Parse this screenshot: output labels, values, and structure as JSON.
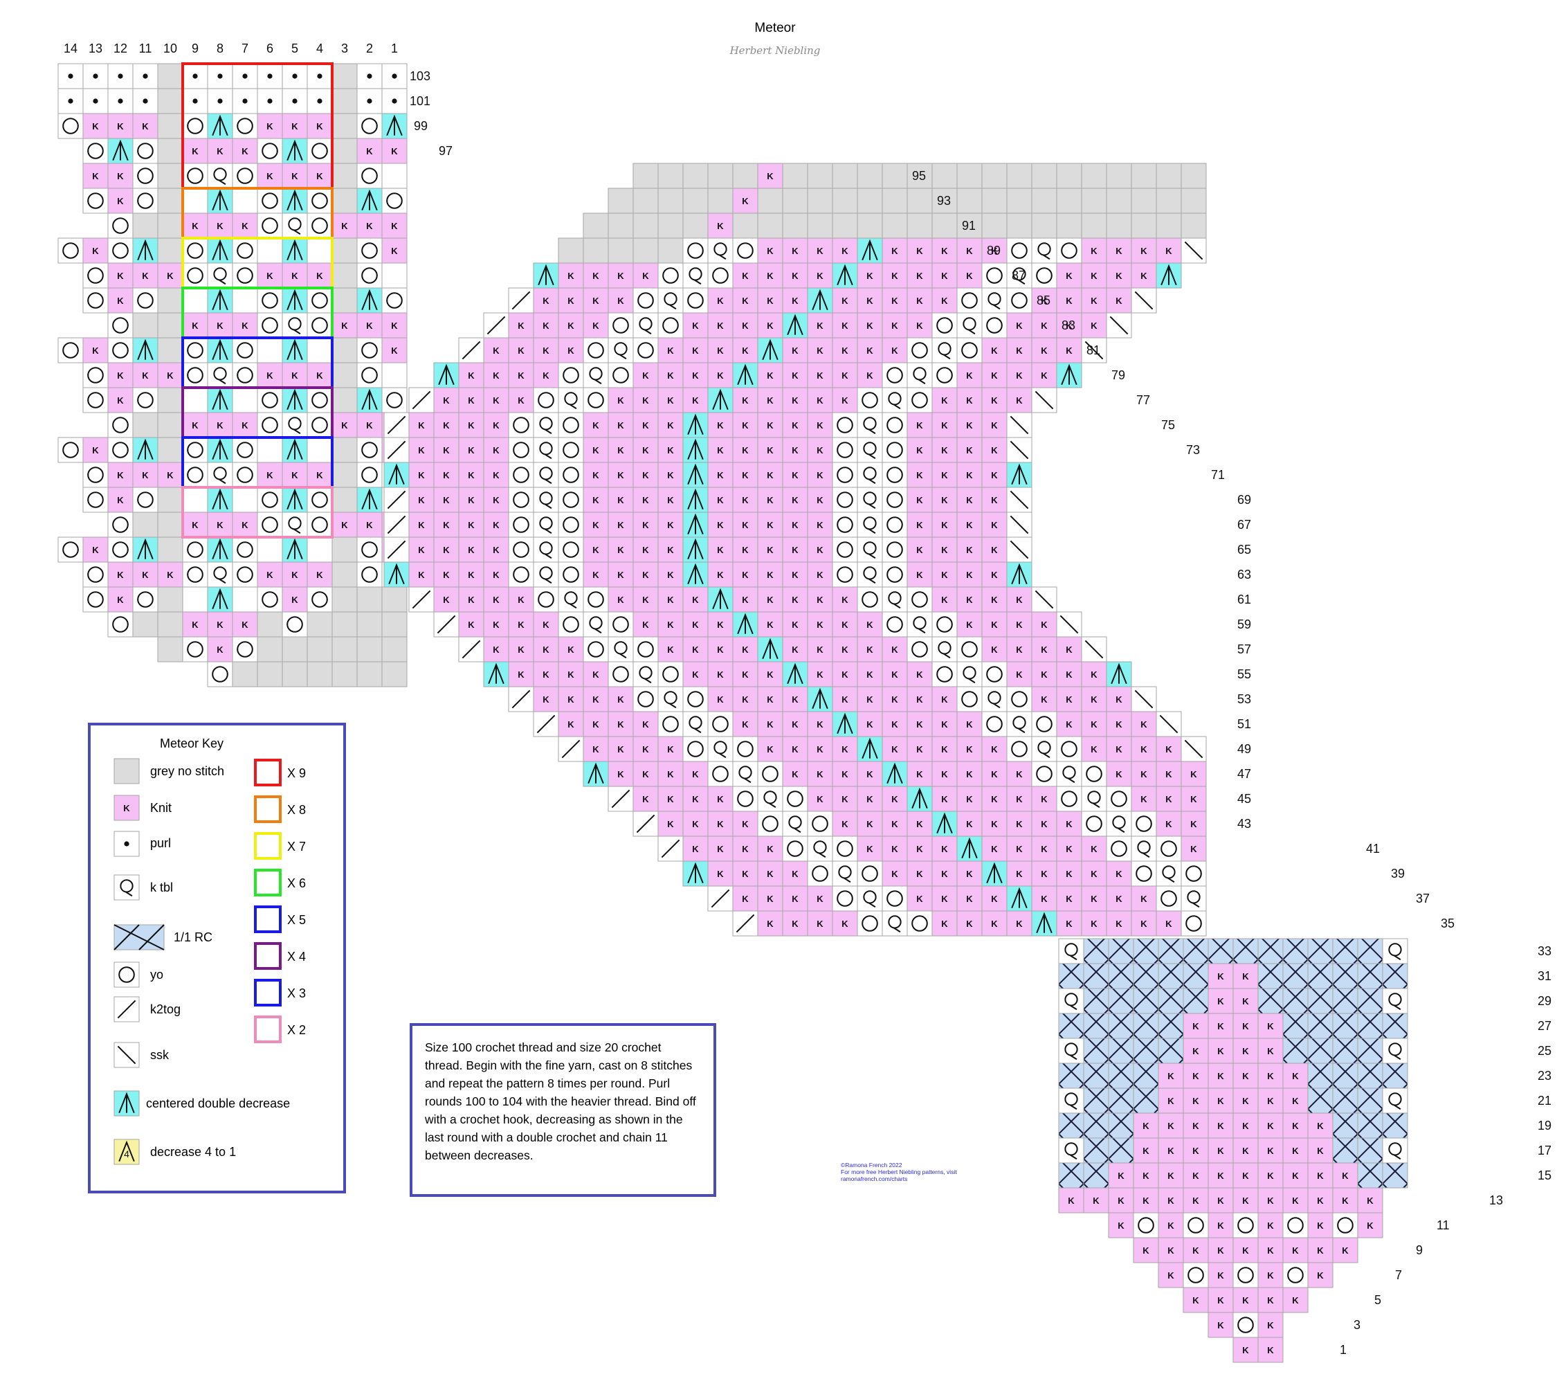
{
  "header": {
    "title": "Meteor",
    "author": "Herbert Niebling"
  },
  "column_numbers": [
    "14",
    "13",
    "12",
    "11",
    "10",
    "9",
    "8",
    "7",
    "6",
    "5",
    "4",
    "3",
    "2",
    "1"
  ],
  "row_labels": {
    "top_block": [
      "103",
      "101",
      "99",
      "97"
    ],
    "upper_diagonal": [
      "95",
      "93",
      "91",
      "89",
      "87",
      "85",
      "83",
      "81",
      "79",
      "77",
      "75",
      "73",
      "71",
      "69",
      "67",
      "65",
      "63",
      "61",
      "59",
      "57",
      "55",
      "53",
      "51",
      "49",
      "47",
      "45",
      "43",
      "41",
      "39",
      "37",
      "35"
    ],
    "lower_block": [
      "33",
      "31",
      "29",
      "27",
      "25",
      "23",
      "21",
      "19",
      "17",
      "15",
      "13",
      "11",
      "9",
      "7",
      "5",
      "3",
      "1"
    ]
  },
  "key": {
    "title": "Meteor Key",
    "symbols": [
      {
        "id": "no-stitch",
        "label": "grey no stitch",
        "color": "#dcdcdc"
      },
      {
        "id": "knit",
        "label": "Knit",
        "glyph": "K",
        "color": "#f6c0f6"
      },
      {
        "id": "purl",
        "label": "purl",
        "glyph": "•"
      },
      {
        "id": "ktbl",
        "label": "k tbl",
        "glyph": "Q"
      },
      {
        "id": "rc",
        "label": "1/1 RC",
        "color": "#c6dcf5"
      },
      {
        "id": "yo",
        "label": "yo"
      },
      {
        "id": "k2tog",
        "label": "k2tog"
      },
      {
        "id": "ssk",
        "label": "ssk"
      },
      {
        "id": "cdd",
        "label": "centered double decrease",
        "color": "#86f2f2"
      },
      {
        "id": "dec4",
        "label": "decrease 4 to 1",
        "glyph": "4",
        "color": "#f8f3a3"
      }
    ],
    "repeats": [
      {
        "label": "X 9",
        "color": "#e81a1a"
      },
      {
        "label": "X 8",
        "color": "#f07d10"
      },
      {
        "label": "X 7",
        "color": "#f0f010"
      },
      {
        "label": "X 6",
        "color": "#2ae62a"
      },
      {
        "label": "X 5",
        "color": "#1a1ae6"
      },
      {
        "label": "X 4",
        "color": "#7a1a8a"
      },
      {
        "label": "X 3",
        "color": "#1a1ae6"
      },
      {
        "label": "X 2",
        "color": "#f08ab8"
      }
    ]
  },
  "notes": "Size 100 crochet thread and size 20 crochet thread. Begin with the fine yarn, cast on 8 stitches and repeat the pattern 8 times per round. Purl rounds 100 to 104 with the heavier thread. Bind off with a crochet hook, decreasing as shown in the last round with a double crochet and chain 11 between decreases.",
  "copyright": {
    "line1": "©Ramona French 2022",
    "line2": "For more free Herbert Niebling patterns, visit",
    "line3": "ramonafrench.com/charts"
  },
  "colors": {
    "knit": "#f6c0f6",
    "no_stitch": "#dcdcdc",
    "cdd": "#86f2f2",
    "rc": "#c6dcf5",
    "grid": "#a6a6a6",
    "frame": "#4a4ab8"
  }
}
